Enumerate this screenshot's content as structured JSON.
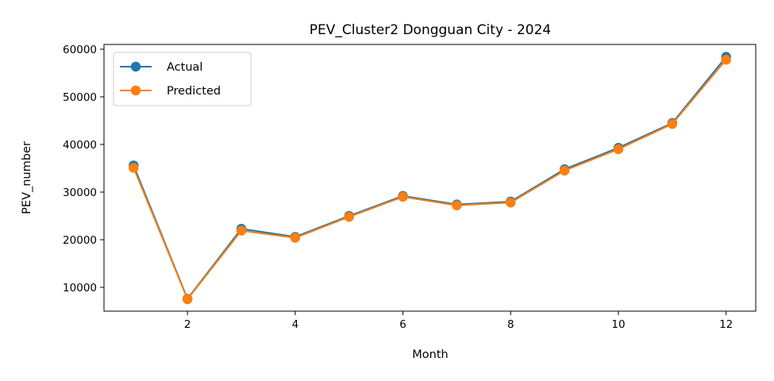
{
  "chart_data": {
    "type": "line",
    "title": "PEV_Cluster2 Dongguan City - 2024",
    "xlabel": "Month",
    "ylabel": "PEV_number",
    "x": [
      1,
      2,
      3,
      4,
      5,
      6,
      7,
      8,
      9,
      10,
      11,
      12
    ],
    "xticks": [
      2,
      4,
      6,
      8,
      10,
      12
    ],
    "yticks": [
      10000,
      20000,
      30000,
      40000,
      50000,
      60000
    ],
    "xlim": [
      0.45,
      12.55
    ],
    "ylim": [
      5000,
      61000
    ],
    "grid": false,
    "legend_position": "top-left",
    "series": [
      {
        "name": "Actual",
        "color": "#1f77b4",
        "marker": "circle",
        "values": [
          35600,
          7600,
          22300,
          20600,
          25000,
          29200,
          27400,
          28000,
          34800,
          39300,
          44500,
          58400
        ]
      },
      {
        "name": "Predicted",
        "color": "#ff7f0e",
        "marker": "circle",
        "values": [
          35100,
          7500,
          21900,
          20400,
          24800,
          29000,
          27200,
          27800,
          34500,
          39000,
          44300,
          57800
        ]
      }
    ]
  }
}
